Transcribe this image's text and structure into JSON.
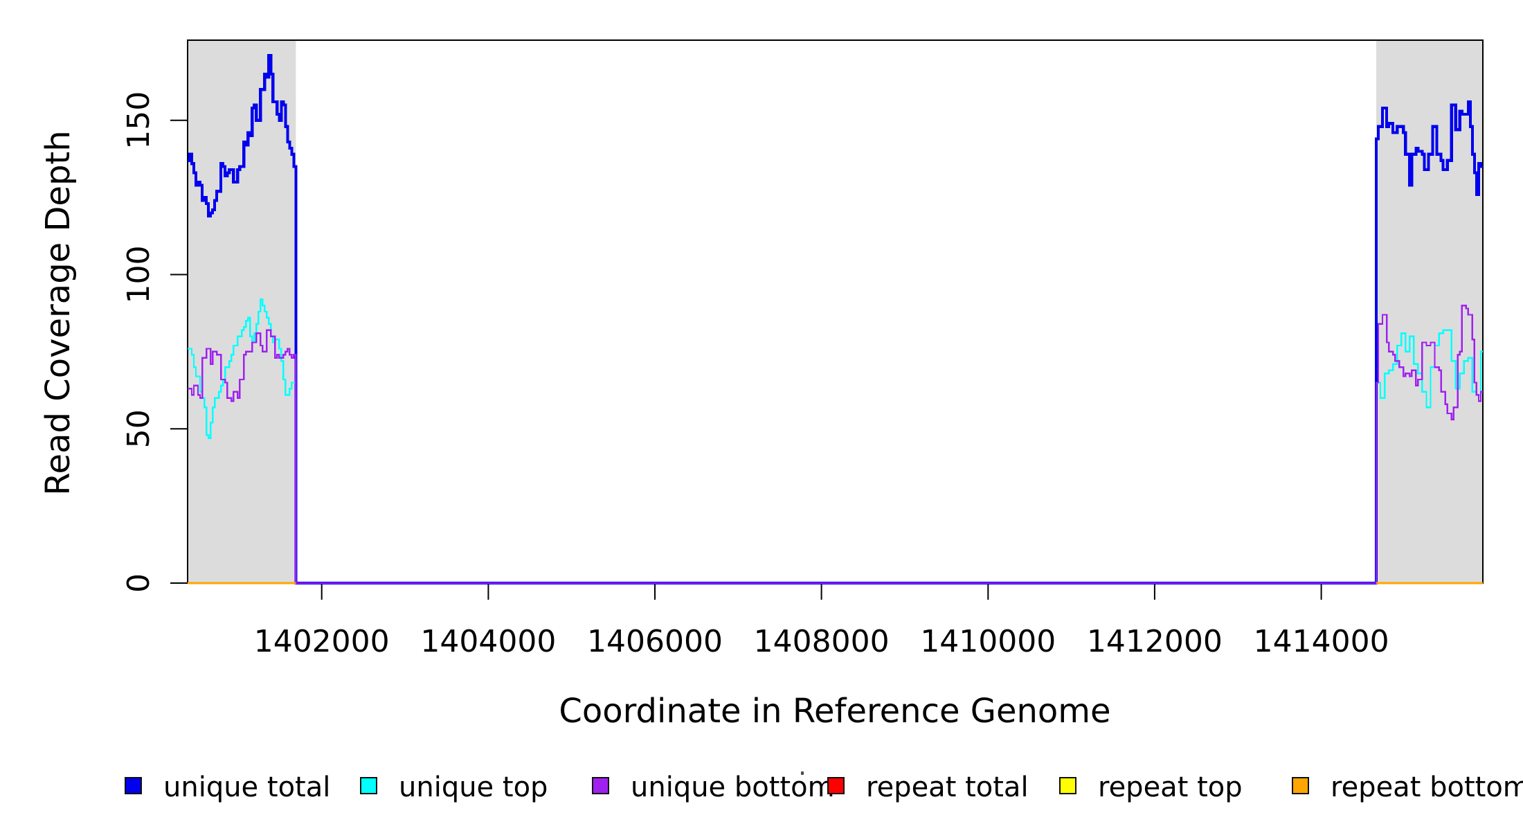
{
  "chart_data": {
    "type": "line",
    "title": "",
    "xlabel": "Coordinate in Reference Genome",
    "ylabel": "Read Coverage Depth",
    "xlim": [
      1400390,
      1415940
    ],
    "ylim": [
      0,
      176
    ],
    "x_ticks": [
      1402000,
      1404000,
      1406000,
      1408000,
      1410000,
      1412000,
      1414000
    ],
    "y_ticks": [
      0,
      50,
      100,
      150
    ],
    "grid": false,
    "legend_position": "bottom",
    "shade_color": "#DCDCDC",
    "axis_color": "#000000",
    "shaded_regions": [
      {
        "from": 1400390,
        "to": 1401690
      },
      {
        "from": 1414660,
        "to": 1415940
      }
    ],
    "series": [
      {
        "name": "unique total",
        "color": "#0000EE",
        "lw": 4.2,
        "middle_value": 0,
        "left_values": [
          137,
          139,
          136,
          133,
          129,
          130,
          129,
          124,
          125,
          123,
          119,
          120,
          121,
          124,
          127,
          127,
          136,
          135,
          132,
          133,
          134,
          134,
          130,
          130,
          134,
          135,
          135,
          143,
          142,
          146,
          145,
          154,
          155,
          150,
          150,
          160,
          160,
          165,
          164,
          171,
          165,
          156,
          156,
          152,
          150,
          156,
          155,
          148,
          143,
          141,
          139,
          135
        ],
        "right_values": [
          144,
          148,
          148,
          154,
          154,
          148,
          149,
          149,
          146,
          146,
          148,
          148,
          148,
          146,
          139,
          139,
          129,
          139,
          139,
          141,
          140,
          140,
          139,
          134,
          134,
          139,
          139,
          148,
          148,
          139,
          139,
          137,
          134,
          134,
          137,
          137,
          155,
          155,
          147,
          147,
          153,
          152,
          152,
          152,
          156,
          148,
          139,
          133,
          126,
          136,
          135
        ]
      },
      {
        "name": "unique top",
        "color": "#00FFFF",
        "lw": 2.4,
        "middle_value": 0,
        "left_values": [
          76,
          76,
          74,
          70,
          67,
          67,
          62,
          60,
          57,
          48,
          47,
          52,
          57,
          60,
          60,
          62,
          64,
          66,
          70,
          70,
          72,
          74,
          77,
          77,
          80,
          80,
          82,
          83,
          85,
          86,
          80,
          78,
          81,
          84,
          88,
          92,
          90,
          88,
          86,
          84,
          80,
          78,
          79,
          79,
          76,
          72,
          66,
          61,
          61,
          63,
          65,
          65
        ],
        "right_values": [
          65,
          65,
          60,
          60,
          68,
          68,
          69,
          69,
          71,
          71,
          77,
          77,
          81,
          81,
          75,
          75,
          80,
          80,
          71,
          71,
          68,
          68,
          62,
          62,
          57,
          57,
          70,
          70,
          77,
          77,
          81,
          81,
          82,
          82,
          82,
          82,
          72,
          72,
          63,
          63,
          68,
          68,
          72,
          72,
          73,
          73,
          62,
          62,
          61,
          61,
          75
        ]
      },
      {
        "name": "unique bottom",
        "color": "#A020F0",
        "lw": 2.4,
        "middle_value": 0,
        "left_values": [
          63,
          63,
          61,
          64,
          64,
          61,
          60,
          73,
          73,
          76,
          76,
          71,
          75,
          75,
          74,
          74,
          66,
          66,
          65,
          60,
          60,
          59,
          62,
          62,
          60,
          66,
          66,
          74,
          75,
          75,
          75,
          78,
          78,
          81,
          81,
          77,
          75,
          75,
          82,
          82,
          80,
          80,
          73,
          74,
          73,
          73,
          74,
          75,
          76,
          74,
          73,
          74
        ],
        "right_values": [
          65,
          84,
          84,
          87,
          87,
          78,
          75,
          75,
          74,
          72,
          72,
          70,
          70,
          67,
          68,
          68,
          67,
          69,
          69,
          64,
          66,
          66,
          78,
          78,
          77,
          77,
          78,
          78,
          70,
          70,
          69,
          62,
          62,
          58,
          55,
          55,
          53,
          57,
          57,
          74,
          75,
          90,
          90,
          89,
          87,
          87,
          79,
          65,
          61,
          59,
          62
        ]
      },
      {
        "name": "repeat total",
        "color": "#FF0000",
        "lw": 2.4,
        "regions_constant": 0
      },
      {
        "name": "repeat top",
        "color": "#FFFF00",
        "lw": 2.4,
        "regions_constant": 0
      },
      {
        "name": "repeat bottom",
        "color": "#FFA500",
        "lw": 3.4,
        "regions_constant": 0
      }
    ],
    "legend": [
      {
        "label": "unique total",
        "color": "#0000EE"
      },
      {
        "label": "unique top",
        "color": "#00FFFF"
      },
      {
        "label": "unique bottom",
        "color": "#A020F0"
      },
      {
        "label": "repeat total",
        "color": "#FF0000"
      },
      {
        "label": "repeat top",
        "color": "#FFFF00"
      },
      {
        "label": "repeat bottom",
        "color": "#FFA500"
      }
    ]
  }
}
